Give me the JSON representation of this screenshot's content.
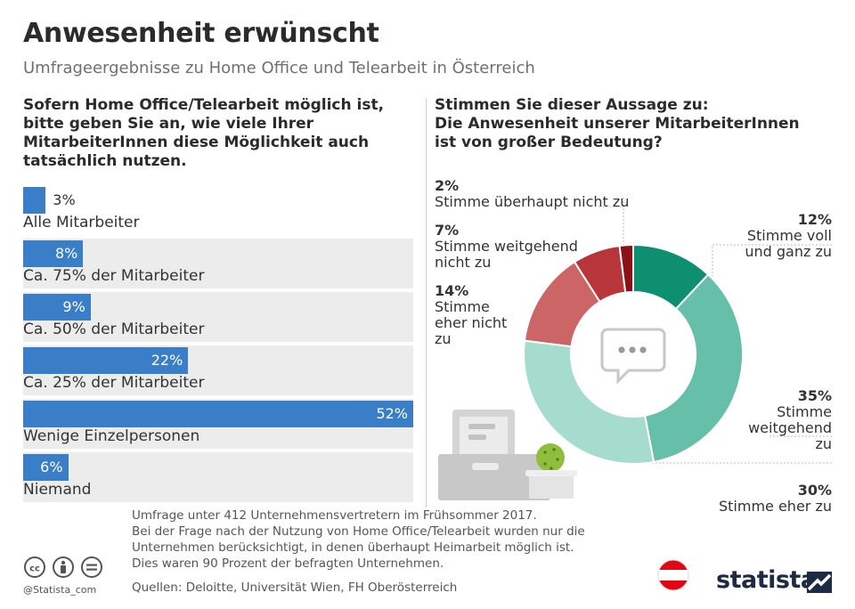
{
  "header": {
    "title": "Anwesenheit erwünscht",
    "subtitle": "Umfrageergebnisse zu Home Office und Telearbeit in Österreich"
  },
  "left_question": "Sofern Home Office/Telearbeit möglich ist, bitte geben Sie an, wie viele Ihrer MitarbeiterInnen diese Möglichkeit auch tatsächlich nutzen.",
  "right_question": "Stimmen Sie dieser Aussage zu:\nDie Anwesenheit unserer MitarbeiterInnen\nist von großer Bedeutung?",
  "chart_data": [
    {
      "type": "bar",
      "orientation": "horizontal",
      "categories": [
        "Alle Mitarbeiter",
        "Ca. 75% der Mitarbeiter",
        "Ca. 50% der Mitarbeiter",
        "Ca. 25% der Mitarbeiter",
        "Wenige Einzelpersonen",
        "Niemand"
      ],
      "values": [
        3,
        8,
        9,
        22,
        52,
        6
      ],
      "value_labels": [
        "3%",
        "8%",
        "9%",
        "22%",
        "52%",
        "6%"
      ],
      "unit": "%",
      "xlim": [
        0,
        55
      ],
      "bar_color": "#3a7ec8"
    },
    {
      "type": "pie",
      "donut": true,
      "slices": [
        {
          "label": "Stimme voll und ganz zu",
          "value": 12,
          "value_label": "12%",
          "color": "#0e8f6f"
        },
        {
          "label": "Stimme weitgehend zu",
          "value": 35,
          "value_label": "35%",
          "color": "#66bfa9"
        },
        {
          "label": "Stimme eher zu",
          "value": 30,
          "value_label": "30%",
          "color": "#a6dccd"
        },
        {
          "label": "Stimme eher nicht zu",
          "value": 14,
          "value_label": "14%",
          "color": "#cc6666"
        },
        {
          "label": "Stimme weitgehend nicht zu",
          "value": 7,
          "value_label": "7%",
          "color": "#b8353a"
        },
        {
          "label": "Stimme überhaupt nicht zu",
          "value": 2,
          "value_label": "2%",
          "color": "#8c1016"
        }
      ]
    }
  ],
  "pie_labels_text": {
    "s0": "Stimme voll\nund ganz zu",
    "s1": "Stimme\nweitgehend\nzu",
    "s2": "Stimme eher zu",
    "s3": "Stimme\neher nicht\nzu",
    "s4": "Stimme weitgehend\nnicht zu",
    "s5": "Stimme überhaupt nicht zu"
  },
  "footnote": "Umfrage unter 412 Unternehmensvertretern im Frühsommer 2017.\nBei der Frage nach der Nutzung von Home Office/Telearbeit wurden nur die\nUnternehmen berücksichtigt, in denen überhaupt Heimarbeit möglich ist.\nDies waren 90 Prozent der befragten Unternehmen.",
  "sources": "Quellen: Deloitte, Universität Wien, FH Oberösterreich",
  "footer": {
    "handle": "@Statista_com",
    "brand": "statista",
    "license_icons": [
      "cc-icon",
      "by-icon",
      "nd-icon"
    ]
  },
  "colors": {
    "bar": "#3a7ec8",
    "bar_bg": "#ececec",
    "flag_red": "#e30613",
    "brand_navy": "#1e2a44"
  }
}
